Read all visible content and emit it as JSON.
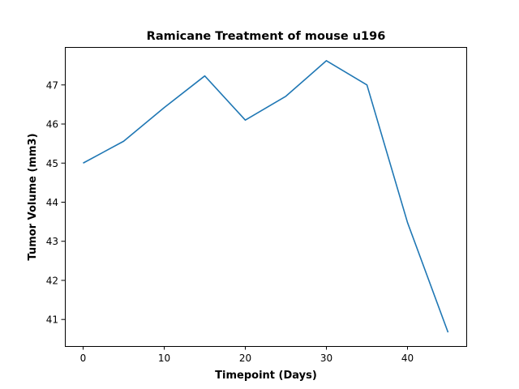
{
  "chart_data": {
    "type": "line",
    "title": "Ramicane Treatment of mouse u196",
    "xlabel": "Timepoint (Days)",
    "ylabel": "Tumor Volume (mm3)",
    "x": [
      0,
      5,
      10,
      15,
      20,
      25,
      30,
      35,
      40,
      45
    ],
    "series": [
      {
        "values": [
          45.0,
          45.56,
          46.42,
          47.23,
          46.1,
          46.71,
          47.62,
          47.0,
          43.48,
          40.67
        ]
      }
    ],
    "xlim": [
      -2.25,
      47.25
    ],
    "ylim": [
      40.32,
      47.97
    ],
    "xticks": [
      0,
      10,
      20,
      30,
      40
    ],
    "yticks": [
      41,
      42,
      43,
      44,
      45,
      46,
      47
    ],
    "grid": false,
    "legend": "none",
    "colors": {
      "line": "#1f77b4"
    }
  }
}
